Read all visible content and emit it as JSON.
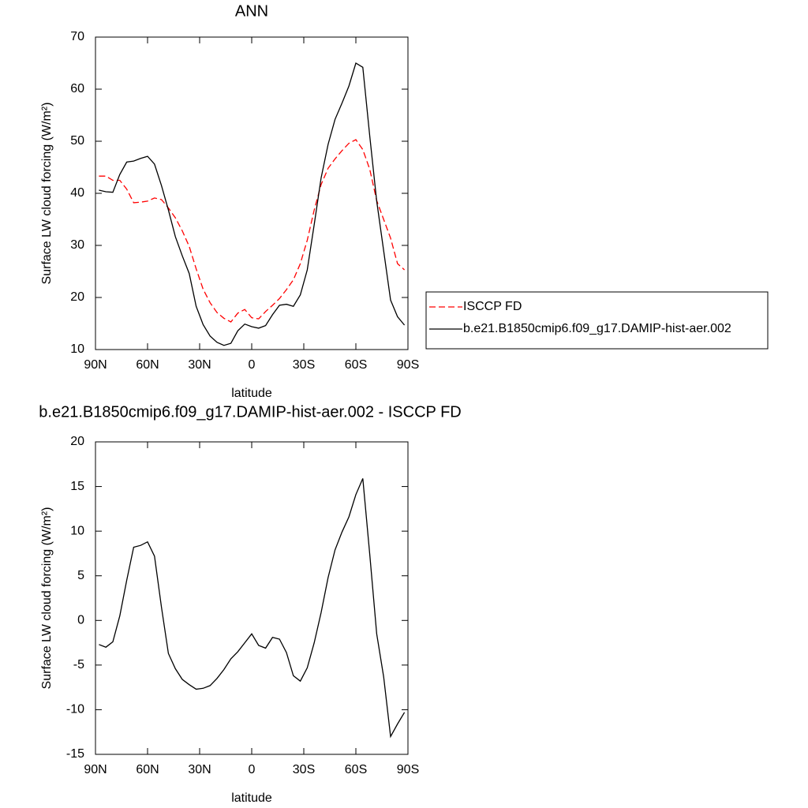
{
  "chart_data": [
    {
      "type": "line",
      "title": "ANN",
      "xlabel": "latitude",
      "ylabel": "Surface LW cloud forcing (W/m²)",
      "x": [
        88,
        84,
        80,
        76,
        72,
        68,
        64,
        60,
        56,
        52,
        48,
        44,
        40,
        36,
        32,
        28,
        24,
        20,
        16,
        12,
        8,
        4,
        0,
        -4,
        -8,
        -12,
        -16,
        -20,
        -24,
        -28,
        -32,
        -36,
        -40,
        -44,
        -48,
        -52,
        -56,
        -60,
        -64,
        -68,
        -72,
        -76,
        -80,
        -84,
        -88
      ],
      "series": [
        {
          "name": "ISCCP FD",
          "color": "#ff0000",
          "linestyle": "dashed",
          "values": [
            43.3,
            43.3,
            42.5,
            42.5,
            40.8,
            38.2,
            38.3,
            38.5,
            39.1,
            38.8,
            37.2,
            35.3,
            32.8,
            29.8,
            25.5,
            21.6,
            19,
            17.1,
            16,
            15.3,
            17,
            17.7,
            16.1,
            15.9,
            17.3,
            18.5,
            19.8,
            21.5,
            23.4,
            26.5,
            31,
            36.8,
            41.7,
            44.8,
            46.6,
            48.2,
            49.6,
            50.3,
            48.4,
            44.6,
            38.6,
            35,
            31.4,
            26.5,
            25.3
          ]
        },
        {
          "name": "b.e21.B1850cmip6.f09_g17.DAMIP-hist-aer.002",
          "color": "#000000",
          "linestyle": "solid",
          "values": [
            40.6,
            40.3,
            40.2,
            43.6,
            46,
            46.2,
            46.7,
            47.1,
            45.6,
            41.5,
            36.8,
            31.7,
            28,
            24.6,
            18.3,
            14.8,
            12.6,
            11.4,
            10.8,
            11.2,
            13.6,
            14.9,
            14.4,
            14.1,
            14.6,
            16.7,
            18.5,
            18.7,
            18.3,
            20.5,
            25.3,
            34,
            43,
            49.4,
            54.2,
            57.3,
            60.6,
            65,
            64.2,
            51,
            38.5,
            29,
            19.5,
            16.3,
            14.7
          ]
        }
      ],
      "xlim": [
        90,
        -90
      ],
      "xticks": [
        {
          "value": 90,
          "label": "90N"
        },
        {
          "value": 60,
          "label": "60N"
        },
        {
          "value": 30,
          "label": "30N"
        },
        0,
        {
          "value": -30,
          "label": "30S"
        },
        {
          "value": -60,
          "label": "60S"
        },
        {
          "value": -90,
          "label": "90S"
        }
      ],
      "ylim": [
        10,
        70
      ],
      "yticks": [
        10,
        20,
        30,
        40,
        50,
        60,
        70
      ],
      "legend": "right"
    },
    {
      "type": "line",
      "title": "b.e21.B1850cmip6.f09_g17.DAMIP-hist-aer.002 - ISCCP FD",
      "xlabel": "latitude",
      "ylabel": "Surface LW cloud forcing (W/m²)",
      "x": [
        88,
        84,
        80,
        76,
        72,
        68,
        64,
        60,
        56,
        52,
        48,
        44,
        40,
        36,
        32,
        28,
        24,
        20,
        16,
        12,
        8,
        4,
        0,
        -4,
        -8,
        -12,
        -16,
        -20,
        -24,
        -28,
        -32,
        -36,
        -40,
        -44,
        -48,
        -52,
        -56,
        -60,
        -64,
        -68,
        -72,
        -76,
        -80,
        -84,
        -88
      ],
      "series": [
        {
          "color": "#000000",
          "linestyle": "solid",
          "values": [
            -2.7,
            -3.0,
            -2.4,
            0.5,
            4.5,
            8.2,
            8.4,
            8.8,
            7.2,
            1.5,
            -3.7,
            -5.4,
            -6.6,
            -7.2,
            -7.7,
            -7.6,
            -7.3,
            -6.5,
            -5.5,
            -4.3,
            -3.5,
            -2.5,
            -1.5,
            -2.8,
            -3.1,
            -1.9,
            -2.1,
            -3.6,
            -6.2,
            -6.8,
            -5.3,
            -2.5,
            0.9,
            4.8,
            7.9,
            9.9,
            11.6,
            14.1,
            15.9,
            7.4,
            -1.5,
            -6.3,
            -13,
            -11.6,
            -10.3
          ]
        }
      ],
      "xlim": [
        90,
        -90
      ],
      "xticks": [
        {
          "value": 90,
          "label": "90N"
        },
        {
          "value": 60,
          "label": "60N"
        },
        {
          "value": 30,
          "label": "30N"
        },
        0,
        {
          "value": -30,
          "label": "30S"
        },
        {
          "value": -60,
          "label": "60S"
        },
        {
          "value": -90,
          "label": "90S"
        }
      ],
      "ylim": [
        -15,
        20
      ],
      "yticks": [
        -15,
        -10,
        -5,
        0,
        5,
        10,
        15,
        20
      ]
    }
  ]
}
